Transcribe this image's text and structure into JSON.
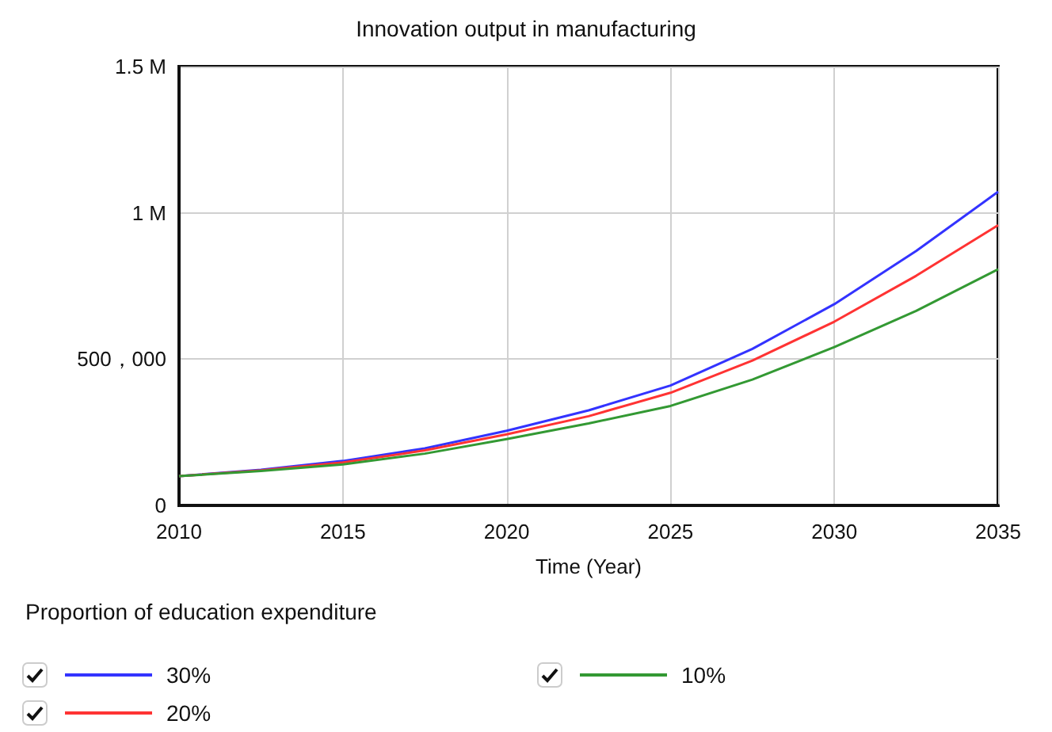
{
  "chart_data": {
    "type": "line",
    "title": "Innovation output in manufacturing",
    "xlabel": "Time (Year)",
    "legend_title": "Proportion of education expenditure",
    "x": [
      2010,
      2012.5,
      2015,
      2017.5,
      2020,
      2022.5,
      2025,
      2027.5,
      2030,
      2032.5,
      2035
    ],
    "series": [
      {
        "name": "30%",
        "color": "#3333ff",
        "values": [
          100000,
          122000,
          152000,
          195000,
          255000,
          325000,
          410000,
          535000,
          688000,
          870000,
          1072000
        ]
      },
      {
        "name": "20%",
        "color": "#ff3333",
        "values": [
          100000,
          120000,
          147000,
          188000,
          243000,
          305000,
          385000,
          495000,
          628000,
          785000,
          958000
        ]
      },
      {
        "name": "10%",
        "color": "#339933",
        "values": [
          100000,
          118000,
          140000,
          177000,
          227000,
          280000,
          340000,
          430000,
          541000,
          665000,
          807000
        ]
      }
    ],
    "xlim": [
      2010,
      2035
    ],
    "xticks": [
      2010,
      2015,
      2020,
      2025,
      2030,
      2035
    ],
    "ylim": [
      0,
      1500000
    ],
    "yticks": [
      {
        "value": 0,
        "label": "0"
      },
      {
        "value": 500000,
        "label": "500，000"
      },
      {
        "value": 1000000,
        "label": "1 M"
      },
      {
        "value": 1500000,
        "label": "1.5 M"
      }
    ],
    "grid": true,
    "legend": "bottom left",
    "marker": "none",
    "line_style": "solid"
  }
}
